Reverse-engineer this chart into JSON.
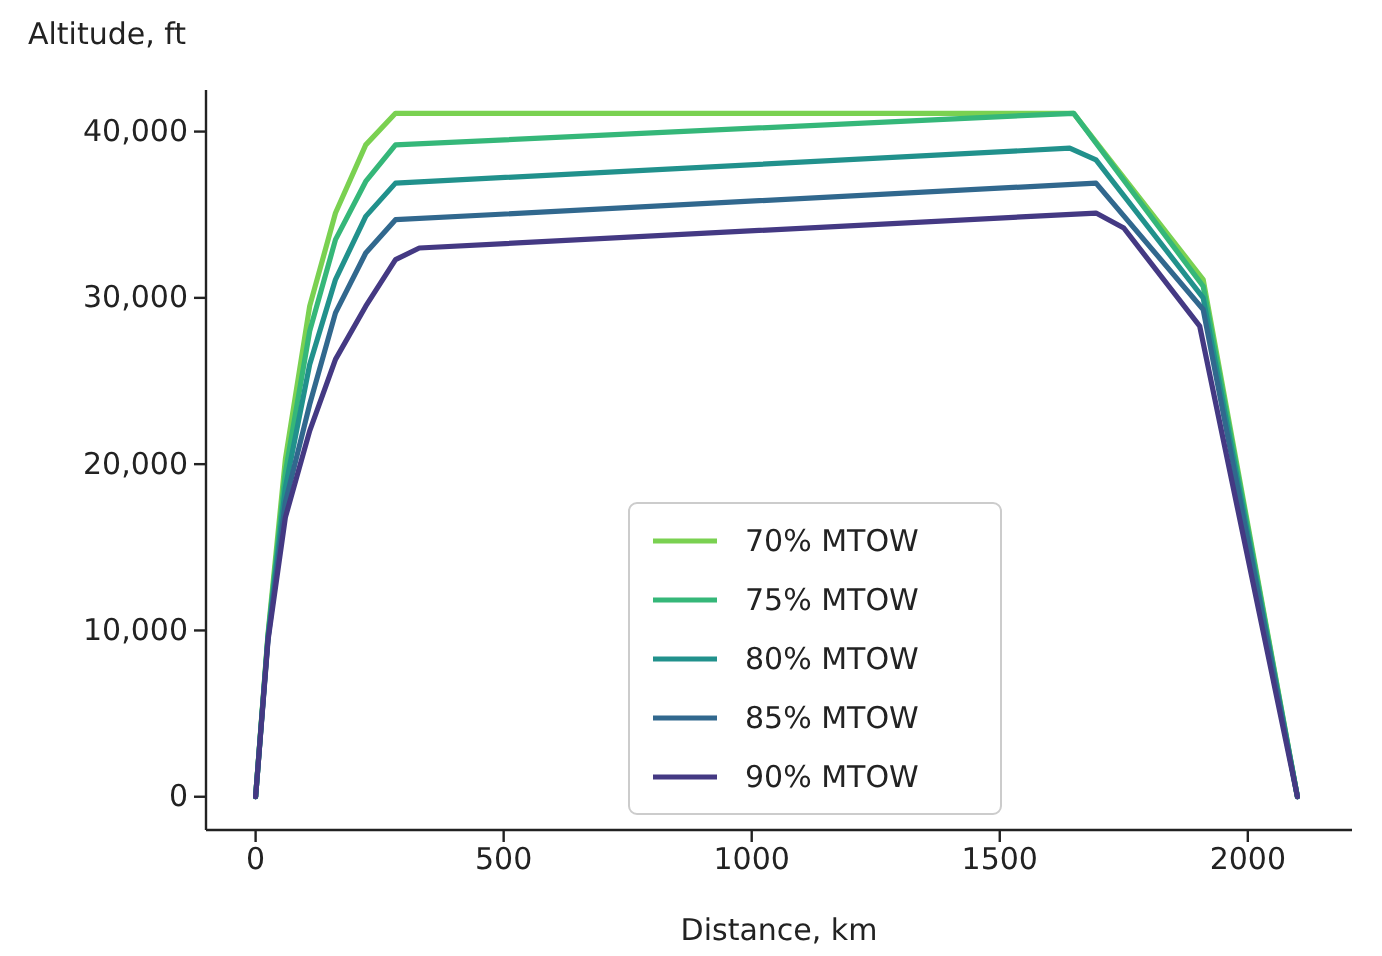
{
  "chart_data": {
    "type": "line",
    "xlabel": "Distance, km",
    "ylabel": "Altitude, ft",
    "xlim": [
      -100,
      2210
    ],
    "ylim": [
      -2000,
      42500
    ],
    "xticks": [
      0,
      500,
      1000,
      1500,
      2000
    ],
    "yticks": [
      {
        "value": 0,
        "label": "0"
      },
      {
        "value": 10000,
        "label": "10,000"
      },
      {
        "value": 20000,
        "label": "20,000"
      },
      {
        "value": 30000,
        "label": "30,000"
      },
      {
        "value": 40000,
        "label": "40,000"
      }
    ],
    "grid": false,
    "legend": "bottom",
    "marker": "none",
    "line_style": "solid",
    "series": [
      {
        "name": "70% MTOW",
        "color": "#7ad151",
        "x": [
          0,
          25,
          60,
          109,
          161,
          222,
          282,
          1649,
          1910,
          2100
        ],
        "values": [
          0,
          9800,
          20300,
          29500,
          35100,
          39200,
          41100,
          41100,
          31100,
          0
        ]
      },
      {
        "name": "75% MTOW",
        "color": "#35b779",
        "x": [
          0,
          25,
          60,
          109,
          161,
          222,
          282,
          1649,
          1910,
          2100
        ],
        "values": [
          0,
          9700,
          19500,
          28000,
          33500,
          37000,
          39200,
          41100,
          30700,
          0
        ]
      },
      {
        "name": "80% MTOW",
        "color": "#21918c",
        "x": [
          0,
          25,
          60,
          109,
          161,
          222,
          282,
          1641,
          1694,
          1910,
          2100
        ],
        "values": [
          0,
          9600,
          18600,
          26000,
          31100,
          34900,
          36900,
          39000,
          38300,
          30000,
          0
        ]
      },
      {
        "name": "85% MTOW",
        "color": "#31688e",
        "x": [
          0,
          25,
          60,
          109,
          161,
          222,
          282,
          1694,
          1910,
          2100
        ],
        "values": [
          0,
          9500,
          17700,
          23600,
          29100,
          32700,
          34700,
          36900,
          29300,
          0
        ]
      },
      {
        "name": "90% MTOW",
        "color": "#443983",
        "x": [
          0,
          25,
          60,
          109,
          161,
          222,
          282,
          330,
          1694,
          1750,
          1903,
          2100
        ],
        "values": [
          0,
          9400,
          16800,
          22000,
          26300,
          29500,
          32300,
          33000,
          35100,
          34200,
          28300,
          0
        ]
      }
    ]
  }
}
